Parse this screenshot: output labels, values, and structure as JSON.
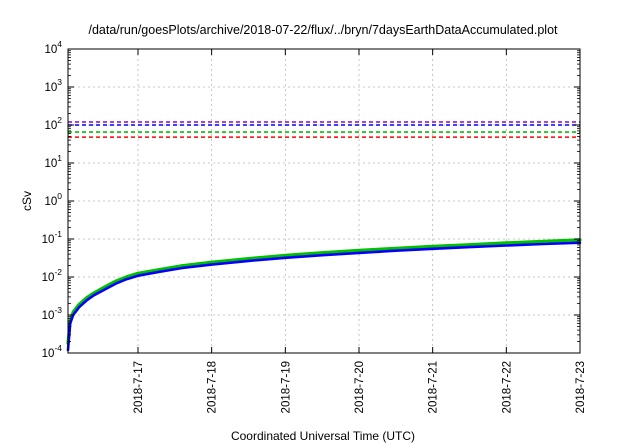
{
  "chart_data": {
    "type": "line",
    "title": "/data/run/goesPlots/archive/2018-07-22/flux/../bryn/7daysEarthDataAccumulated.plot",
    "xlabel": "Coordinated Universal Time (UTC)",
    "ylabel": "cSv",
    "y_scale": "log",
    "ylim": [
      0.0001,
      10000
    ],
    "y_ticks": [
      {
        "value": 0.0001,
        "base": "10",
        "exp": "-4"
      },
      {
        "value": 0.001,
        "base": "10",
        "exp": "-3"
      },
      {
        "value": 0.01,
        "base": "10",
        "exp": "-2"
      },
      {
        "value": 0.1,
        "base": "10",
        "exp": "-1"
      },
      {
        "value": 1,
        "base": "10",
        "exp": "0"
      },
      {
        "value": 10,
        "base": "10",
        "exp": "1"
      },
      {
        "value": 100,
        "base": "10",
        "exp": "2"
      },
      {
        "value": 1000,
        "base": "10",
        "exp": "3"
      },
      {
        "value": 10000,
        "base": "10",
        "exp": "4"
      }
    ],
    "xlim": [
      16.05,
      23.0
    ],
    "x_ticks": [
      {
        "value": 17,
        "label": "2018-7-17"
      },
      {
        "value": 18,
        "label": "2018-7-18"
      },
      {
        "value": 19,
        "label": "2018-7-19"
      },
      {
        "value": 20,
        "label": "2018-7-20"
      },
      {
        "value": 21,
        "label": "2018-7-21"
      },
      {
        "value": 22,
        "label": "2018-7-22"
      },
      {
        "value": 23,
        "label": "2018-7-23"
      }
    ],
    "grid": true,
    "reference_lines": [
      {
        "color": "#9400d3",
        "value": 120
      },
      {
        "color": "#0000ff",
        "value": 100
      },
      {
        "color": "#00c000",
        "value": 65
      },
      {
        "color": "#ff0000",
        "value": 48
      }
    ],
    "series": [
      {
        "color": "#00c000",
        "x": [
          16.05,
          16.08,
          16.12,
          16.2,
          16.3,
          16.4,
          16.55,
          16.7,
          16.85,
          17.0,
          17.3,
          17.6,
          18.0,
          18.5,
          19.0,
          19.5,
          20.0,
          20.5,
          21.0,
          21.5,
          22.0,
          22.5,
          23.0
        ],
        "y": [
          0.00018,
          0.0007,
          0.0012,
          0.0019,
          0.0028,
          0.0038,
          0.0055,
          0.0078,
          0.0102,
          0.0125,
          0.0158,
          0.0198,
          0.0245,
          0.0305,
          0.037,
          0.0435,
          0.05,
          0.057,
          0.064,
          0.071,
          0.079,
          0.087,
          0.095
        ]
      },
      {
        "color": "#0000ff",
        "x": [
          16.05,
          16.08,
          16.12,
          16.2,
          16.3,
          16.4,
          16.55,
          16.7,
          16.85,
          17.0,
          17.3,
          17.6,
          18.0,
          18.5,
          19.0,
          19.5,
          20.0,
          20.5,
          21.0,
          21.5,
          22.0,
          22.5,
          23.0
        ],
        "y": [
          0.00012,
          0.0006,
          0.001,
          0.0016,
          0.0024,
          0.0033,
          0.0047,
          0.0067,
          0.0088,
          0.0108,
          0.0138,
          0.0172,
          0.0212,
          0.0265,
          0.032,
          0.0375,
          0.0432,
          0.0492,
          0.0552,
          0.0612,
          0.0675,
          0.074,
          0.08
        ]
      }
    ]
  }
}
